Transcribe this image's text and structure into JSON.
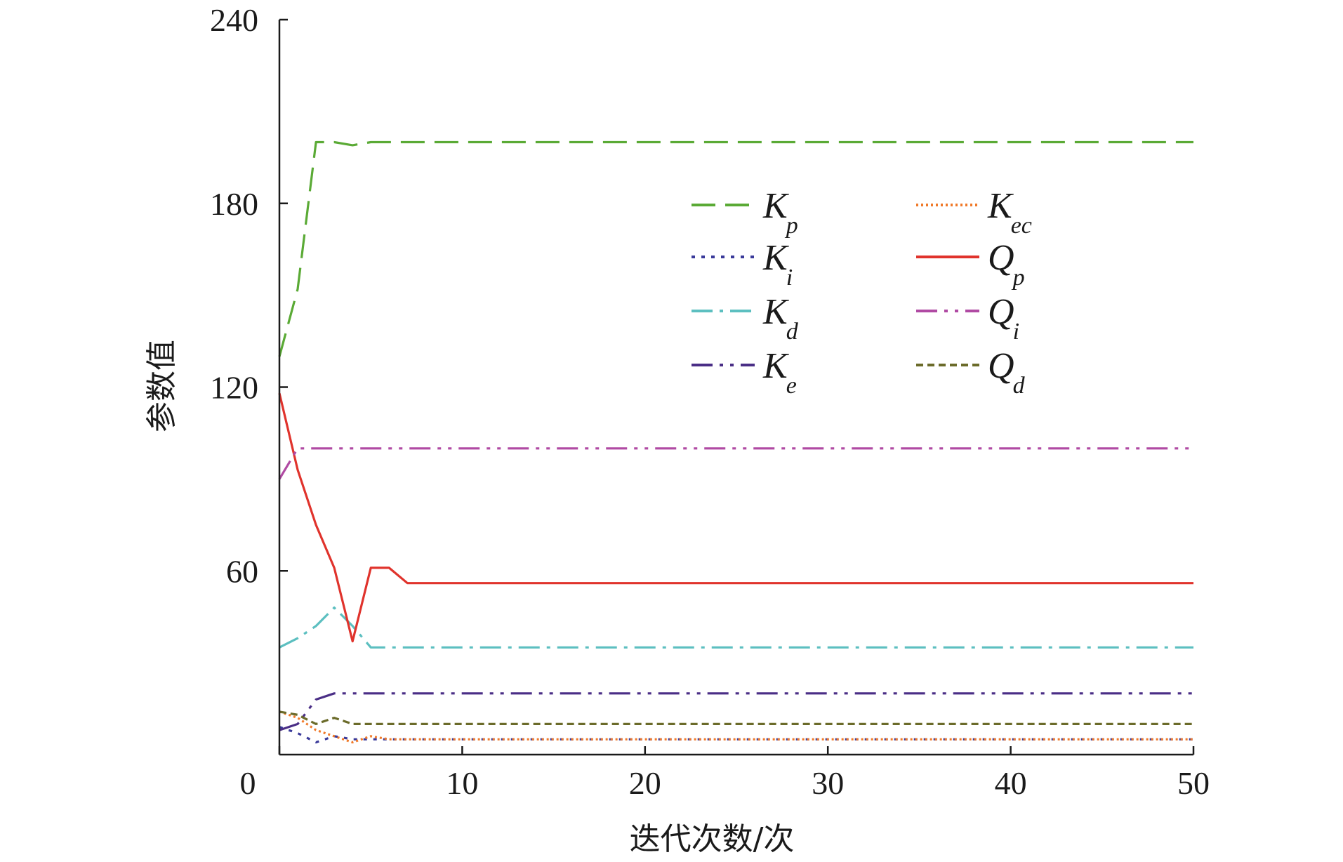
{
  "chart_data": {
    "type": "line",
    "xlabel": "迭代次数/次",
    "ylabel": "参数值",
    "xlim": [
      0,
      50
    ],
    "ylim": [
      0,
      240
    ],
    "x_ticks": [
      0,
      10,
      20,
      30,
      40,
      50
    ],
    "y_ticks": [
      60,
      120,
      180,
      240
    ],
    "grid": false,
    "legend_position": "upper-center",
    "series": [
      {
        "id": "Kp",
        "name": "K",
        "sub": "p",
        "color": "#5aaa35",
        "dash": "34 14",
        "x": [
          0,
          1,
          2,
          3,
          4,
          5,
          6,
          7,
          8,
          9,
          10,
          50
        ],
        "y": [
          130,
          152,
          200,
          200,
          199,
          200,
          200,
          200,
          200,
          200,
          200,
          200
        ]
      },
      {
        "id": "Ki",
        "name": "K",
        "sub": "i",
        "color": "#3a3a9a",
        "dash": "5 9",
        "x": [
          0,
          1,
          2,
          3,
          4,
          5,
          6,
          7,
          8,
          9,
          10,
          50
        ],
        "y": [
          9,
          7,
          4,
          6,
          5,
          5,
          5,
          5,
          5,
          5,
          5,
          5
        ]
      },
      {
        "id": "Kd",
        "name": "K",
        "sub": "d",
        "color": "#5cbfc0",
        "dash": "30 10 5 10",
        "x": [
          0,
          1,
          2,
          3,
          4,
          5,
          6,
          7,
          8,
          9,
          10,
          50
        ],
        "y": [
          35,
          38,
          42,
          48,
          42,
          35,
          35,
          35,
          35,
          35,
          35,
          35
        ]
      },
      {
        "id": "Ke",
        "name": "K",
        "sub": "e",
        "color": "#4a2e86",
        "dash": "30 10 5 10 5 10",
        "x": [
          0,
          1,
          2,
          3,
          4,
          5,
          6,
          7,
          8,
          9,
          10,
          50
        ],
        "y": [
          8,
          10,
          18,
          20,
          20,
          20,
          20,
          20,
          20,
          20,
          20,
          20
        ]
      },
      {
        "id": "Kec",
        "name": "K",
        "sub": "ec",
        "color": "#f07a2a",
        "dash": "3 4",
        "x": [
          0,
          1,
          2,
          3,
          4,
          5,
          6,
          7,
          8,
          9,
          10,
          50
        ],
        "y": [
          14,
          12,
          8,
          6,
          4,
          6,
          5,
          5,
          5,
          5,
          5,
          5
        ]
      },
      {
        "id": "Qp",
        "name": "Q",
        "sub": "p",
        "color": "#e0332c",
        "dash": "",
        "x": [
          0,
          1,
          2,
          3,
          4,
          5,
          6,
          7,
          8,
          9,
          10,
          50
        ],
        "y": [
          118,
          93,
          75,
          61,
          37,
          61,
          61,
          56,
          56,
          56,
          56,
          56
        ]
      },
      {
        "id": "Qi",
        "name": "Q",
        "sub": "i",
        "color": "#b04aa3",
        "dash": "30 10 5 10 5 10",
        "x": [
          0,
          1,
          2,
          3,
          4,
          5,
          6,
          7,
          8,
          9,
          10,
          50
        ],
        "y": [
          90,
          100,
          100,
          100,
          100,
          100,
          100,
          100,
          100,
          100,
          100,
          100
        ]
      },
      {
        "id": "Qd",
        "name": "Q",
        "sub": "d",
        "color": "#6b6b2a",
        "dash": "10 6",
        "x": [
          0,
          1,
          2,
          3,
          4,
          5,
          6,
          7,
          8,
          9,
          10,
          50
        ],
        "y": [
          14,
          13,
          10,
          12,
          10,
          10,
          10,
          10,
          10,
          10,
          10,
          10
        ]
      }
    ]
  }
}
